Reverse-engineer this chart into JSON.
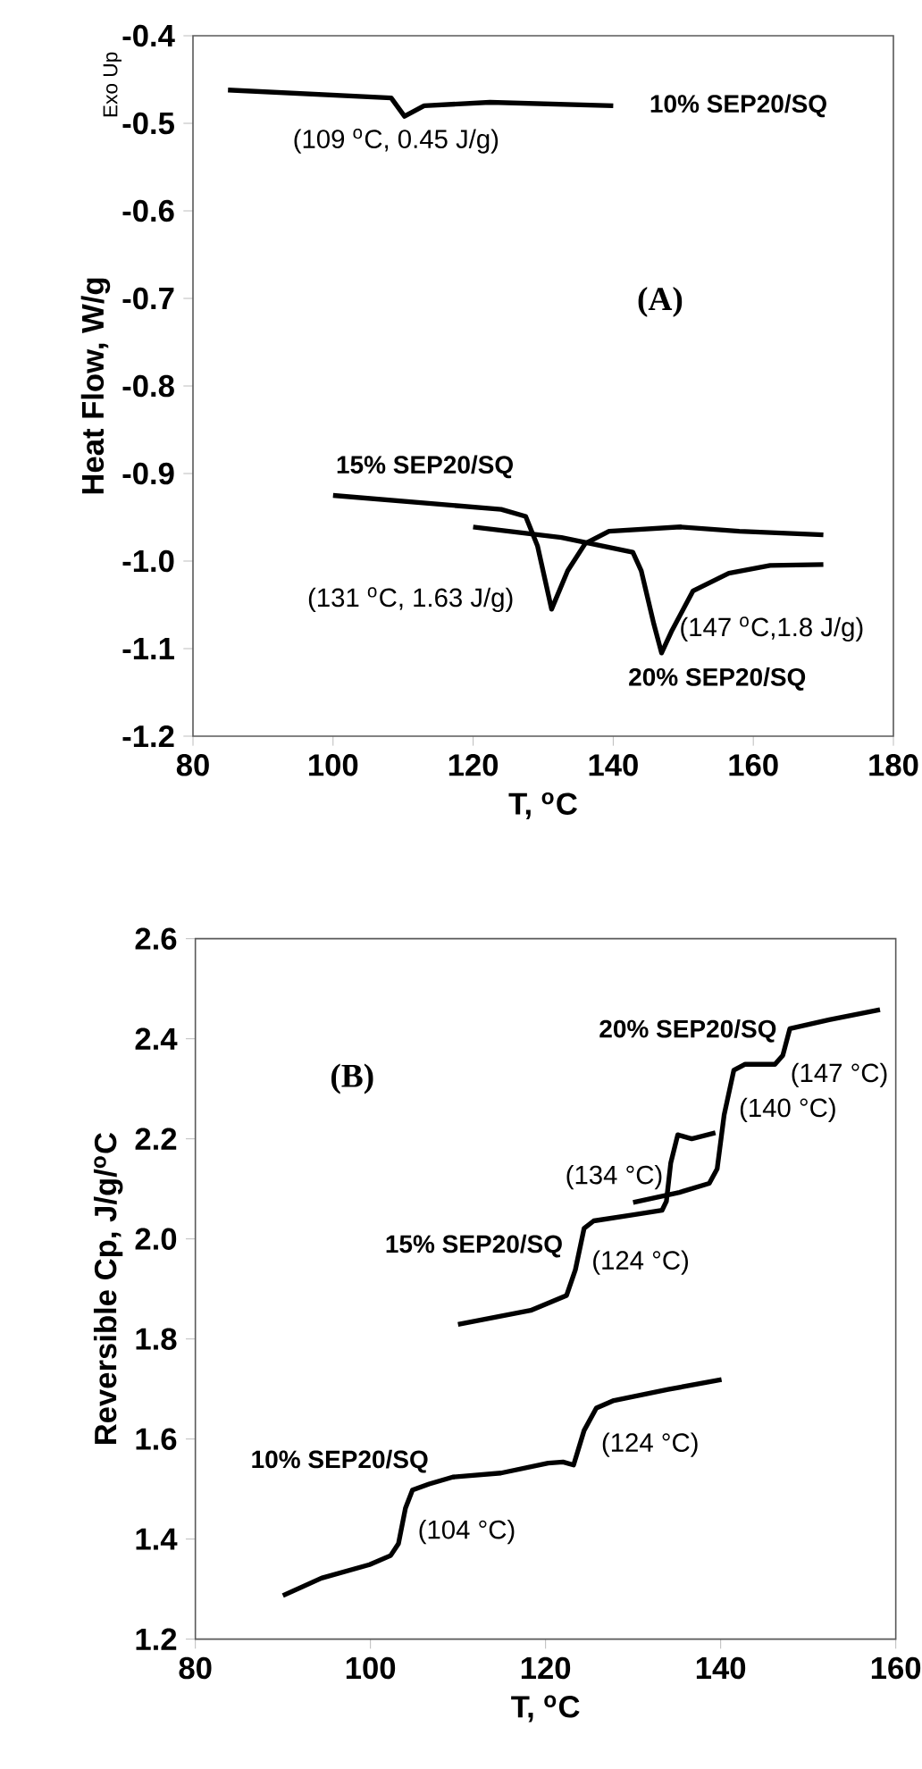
{
  "chart_data": [
    {
      "type": "line",
      "title": "(A)",
      "xlabel": "T, $^{o}$C",
      "ylabel": "Heat Flow, W/g",
      "xlim": [
        80,
        180
      ],
      "ylim": [
        -1.2,
        -0.4
      ],
      "xticks": [
        80,
        100,
        120,
        140,
        160,
        180
      ],
      "yticks": [
        -0.4,
        -0.5,
        -0.6,
        -0.7,
        -0.8,
        -0.9,
        {
          "value": -1.0,
          "label": "-1.0"
        },
        -1.1,
        -1.2
      ],
      "annotations": [
        "Exo Up",
        {
          "text": "(109 $^{o}$C, 0.45 J/g)",
          "x": 109,
          "y": -0.492
        },
        {
          "text": "(131 $^{o}$C, 1.63 J/g)",
          "x": 131,
          "y": -1.055
        },
        {
          "text": "(147 $^{o}$C,1.8 J/g)",
          "x": 147,
          "y": -1.105
        }
      ],
      "series": [
        {
          "name": "10% SEP20/SQ",
          "color": "#000000",
          "x": [
            85,
            108.3,
            110.2,
            113,
            122.4,
            140
          ],
          "values": [
            -0.462,
            -0.471,
            -0.492,
            -0.48,
            -0.476,
            -0.48
          ]
        },
        {
          "name": "15% SEP20/SQ",
          "color": "#000000",
          "x": [
            100,
            124,
            127.5,
            129.2,
            131.2,
            133.5,
            136,
            139.4,
            149.6,
            158,
            170
          ],
          "values": [
            -0.925,
            -0.941,
            -0.949,
            -0.983,
            -1.055,
            -1.011,
            -0.98,
            -0.966,
            -0.961,
            -0.966,
            -0.97
          ]
        },
        {
          "name": "20% SEP20/SQ",
          "color": "#000000",
          "x": [
            120,
            132.6,
            142.8,
            144,
            145.8,
            146.9,
            148.4,
            151.4,
            156.5,
            162.4,
            170
          ],
          "values": [
            -0.961,
            -0.973,
            -0.99,
            -1.011,
            -1.072,
            -1.105,
            -1.079,
            -1.034,
            -1.014,
            -1.005,
            -1.004
          ]
        }
      ]
    },
    {
      "type": "line",
      "title": "(B)",
      "xlabel": "T, $^{o}$C",
      "ylabel": "Reversible Cp, J/g/$^{o}$C",
      "xlim": [
        80,
        160
      ],
      "ylim": [
        1.2,
        2.6
      ],
      "xticks": [
        80,
        100,
        120,
        140,
        160
      ],
      "yticks": [
        1.2,
        1.4,
        1.6,
        1.8,
        {
          "value": 2.0,
          "label": "2.0"
        },
        2.2,
        2.4,
        2.6
      ],
      "annotations": [
        {
          "text": "(147 °C)",
          "x": 147.1,
          "y": 2.367
        },
        {
          "text": "(140 °C)",
          "x": 140.4,
          "y": 2.248
        },
        {
          "text": "(134 °C)",
          "x": 134.3,
          "y": 2.152
        },
        {
          "text": "(124 °C)",
          "x": 124.4,
          "y": 2.021
        },
        {
          "text": "(124 °C)",
          "x": 124.4,
          "y": 1.617
        },
        {
          "text": "(104 °C)",
          "x": 104,
          "y": 1.462
        }
      ],
      "series": [
        {
          "name": "10% SEP20/SQ",
          "color": "#000000",
          "x": [
            90,
            94.4,
            99.9,
            102.3,
            103.2,
            104,
            104.8,
            106.7,
            109.4,
            114.9,
            120.3,
            122,
            123.2,
            124.4,
            125.8,
            127.8,
            134,
            140.1
          ],
          "values": [
            1.287,
            1.322,
            1.349,
            1.367,
            1.391,
            1.462,
            1.498,
            1.51,
            1.524,
            1.532,
            1.552,
            1.554,
            1.548,
            1.617,
            1.662,
            1.677,
            1.699,
            1.719
          ]
        },
        {
          "name": "15% SEP20/SQ",
          "color": "#000000",
          "x": [
            110,
            118.3,
            122.4,
            123.4,
            124.4,
            125.5,
            129.9,
            133.3,
            133.8,
            134.3,
            135.1,
            136.7,
            139.4
          ],
          "values": [
            1.829,
            1.857,
            1.887,
            1.938,
            2.021,
            2.036,
            2.048,
            2.057,
            2.075,
            2.152,
            2.208,
            2.2,
            2.212
          ]
        },
        {
          "name": "20% SEP20/SQ",
          "color": "#000000",
          "x": [
            130,
            135.3,
            138.7,
            139.6,
            140.4,
            141.5,
            142.8,
            146.2,
            147.1,
            147.9,
            152.4,
            158.2
          ],
          "values": [
            2.073,
            2.093,
            2.111,
            2.14,
            2.248,
            2.337,
            2.349,
            2.349,
            2.367,
            2.42,
            2.438,
            2.458
          ]
        }
      ]
    }
  ]
}
